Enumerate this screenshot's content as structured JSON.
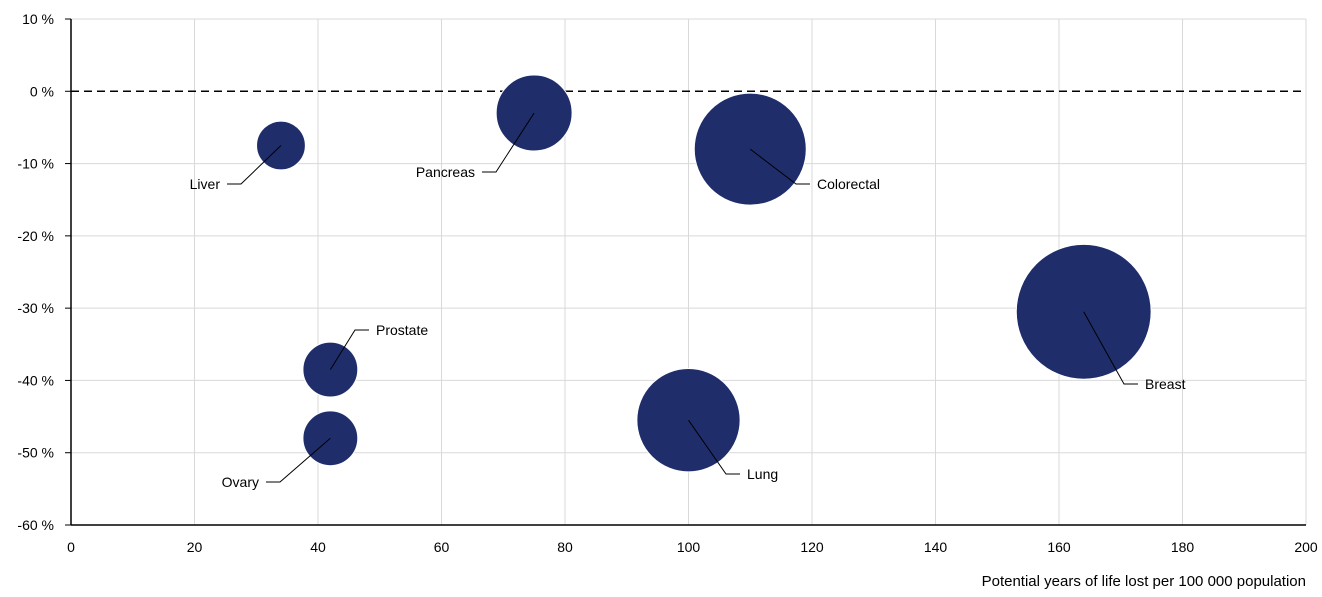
{
  "chart_data": {
    "type": "bubble",
    "xlabel": "Potential years of life lost per 100 000 population",
    "ylabel": "",
    "xlim": [
      0,
      200
    ],
    "ylim": [
      -60,
      10
    ],
    "x_ticks": [
      0,
      20,
      40,
      60,
      80,
      100,
      120,
      140,
      160,
      180,
      200
    ],
    "x_tick_labels": [
      "0",
      "20",
      "40",
      "60",
      "80",
      "100",
      "120",
      "140",
      "160",
      "180",
      "200"
    ],
    "y_ticks": [
      10,
      0,
      -10,
      -20,
      -30,
      -40,
      -50,
      -60
    ],
    "y_tick_labels": [
      "10 %",
      "0 %",
      "-10 %",
      "-20 %",
      "-30 %",
      "-40 %",
      "-50 %",
      "-60 %"
    ],
    "reference_line": {
      "y": 0,
      "style": "dashed"
    },
    "grid": true,
    "bubble_color": "#1f2d6b",
    "points": [
      {
        "label": "Liver",
        "x": 34,
        "y": -7.5,
        "size": 0.19
      },
      {
        "label": "Pancreas",
        "x": 75,
        "y": -3,
        "size": 0.46
      },
      {
        "label": "Colorectal",
        "x": 110,
        "y": -8,
        "size": 1.0
      },
      {
        "label": "Breast",
        "x": 164,
        "y": -30.5,
        "size": 1.45
      },
      {
        "label": "Prostate",
        "x": 42,
        "y": -38.5,
        "size": 0.24
      },
      {
        "label": "Ovary",
        "x": 42,
        "y": -48,
        "size": 0.24
      },
      {
        "label": "Lung",
        "x": 100,
        "y": -45.5,
        "size": 0.85
      }
    ]
  }
}
